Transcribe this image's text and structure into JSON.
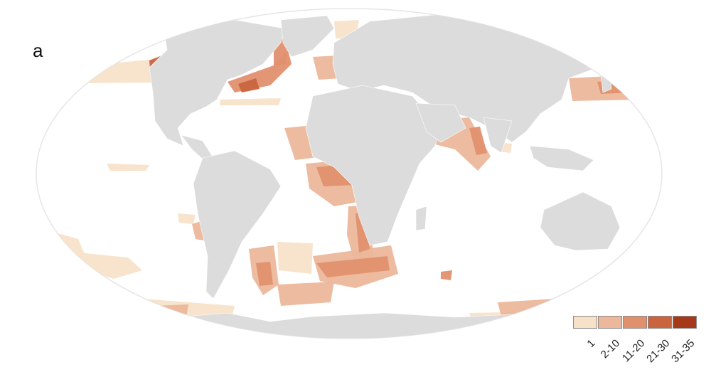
{
  "panel_label": "a",
  "map": {
    "projection": "Mollweide",
    "land_color": "#dcdcdc",
    "ocean_color": "#ffffff"
  },
  "legend": {
    "bins": [
      {
        "label": "1",
        "color": "#f8e1c9"
      },
      {
        "label": "2-10",
        "color": "#ecb79b"
      },
      {
        "label": "11-20",
        "color": "#e1906e"
      },
      {
        "label": "21-30",
        "color": "#c9643f"
      },
      {
        "label": "31-35",
        "color": "#a7391b"
      }
    ]
  }
}
